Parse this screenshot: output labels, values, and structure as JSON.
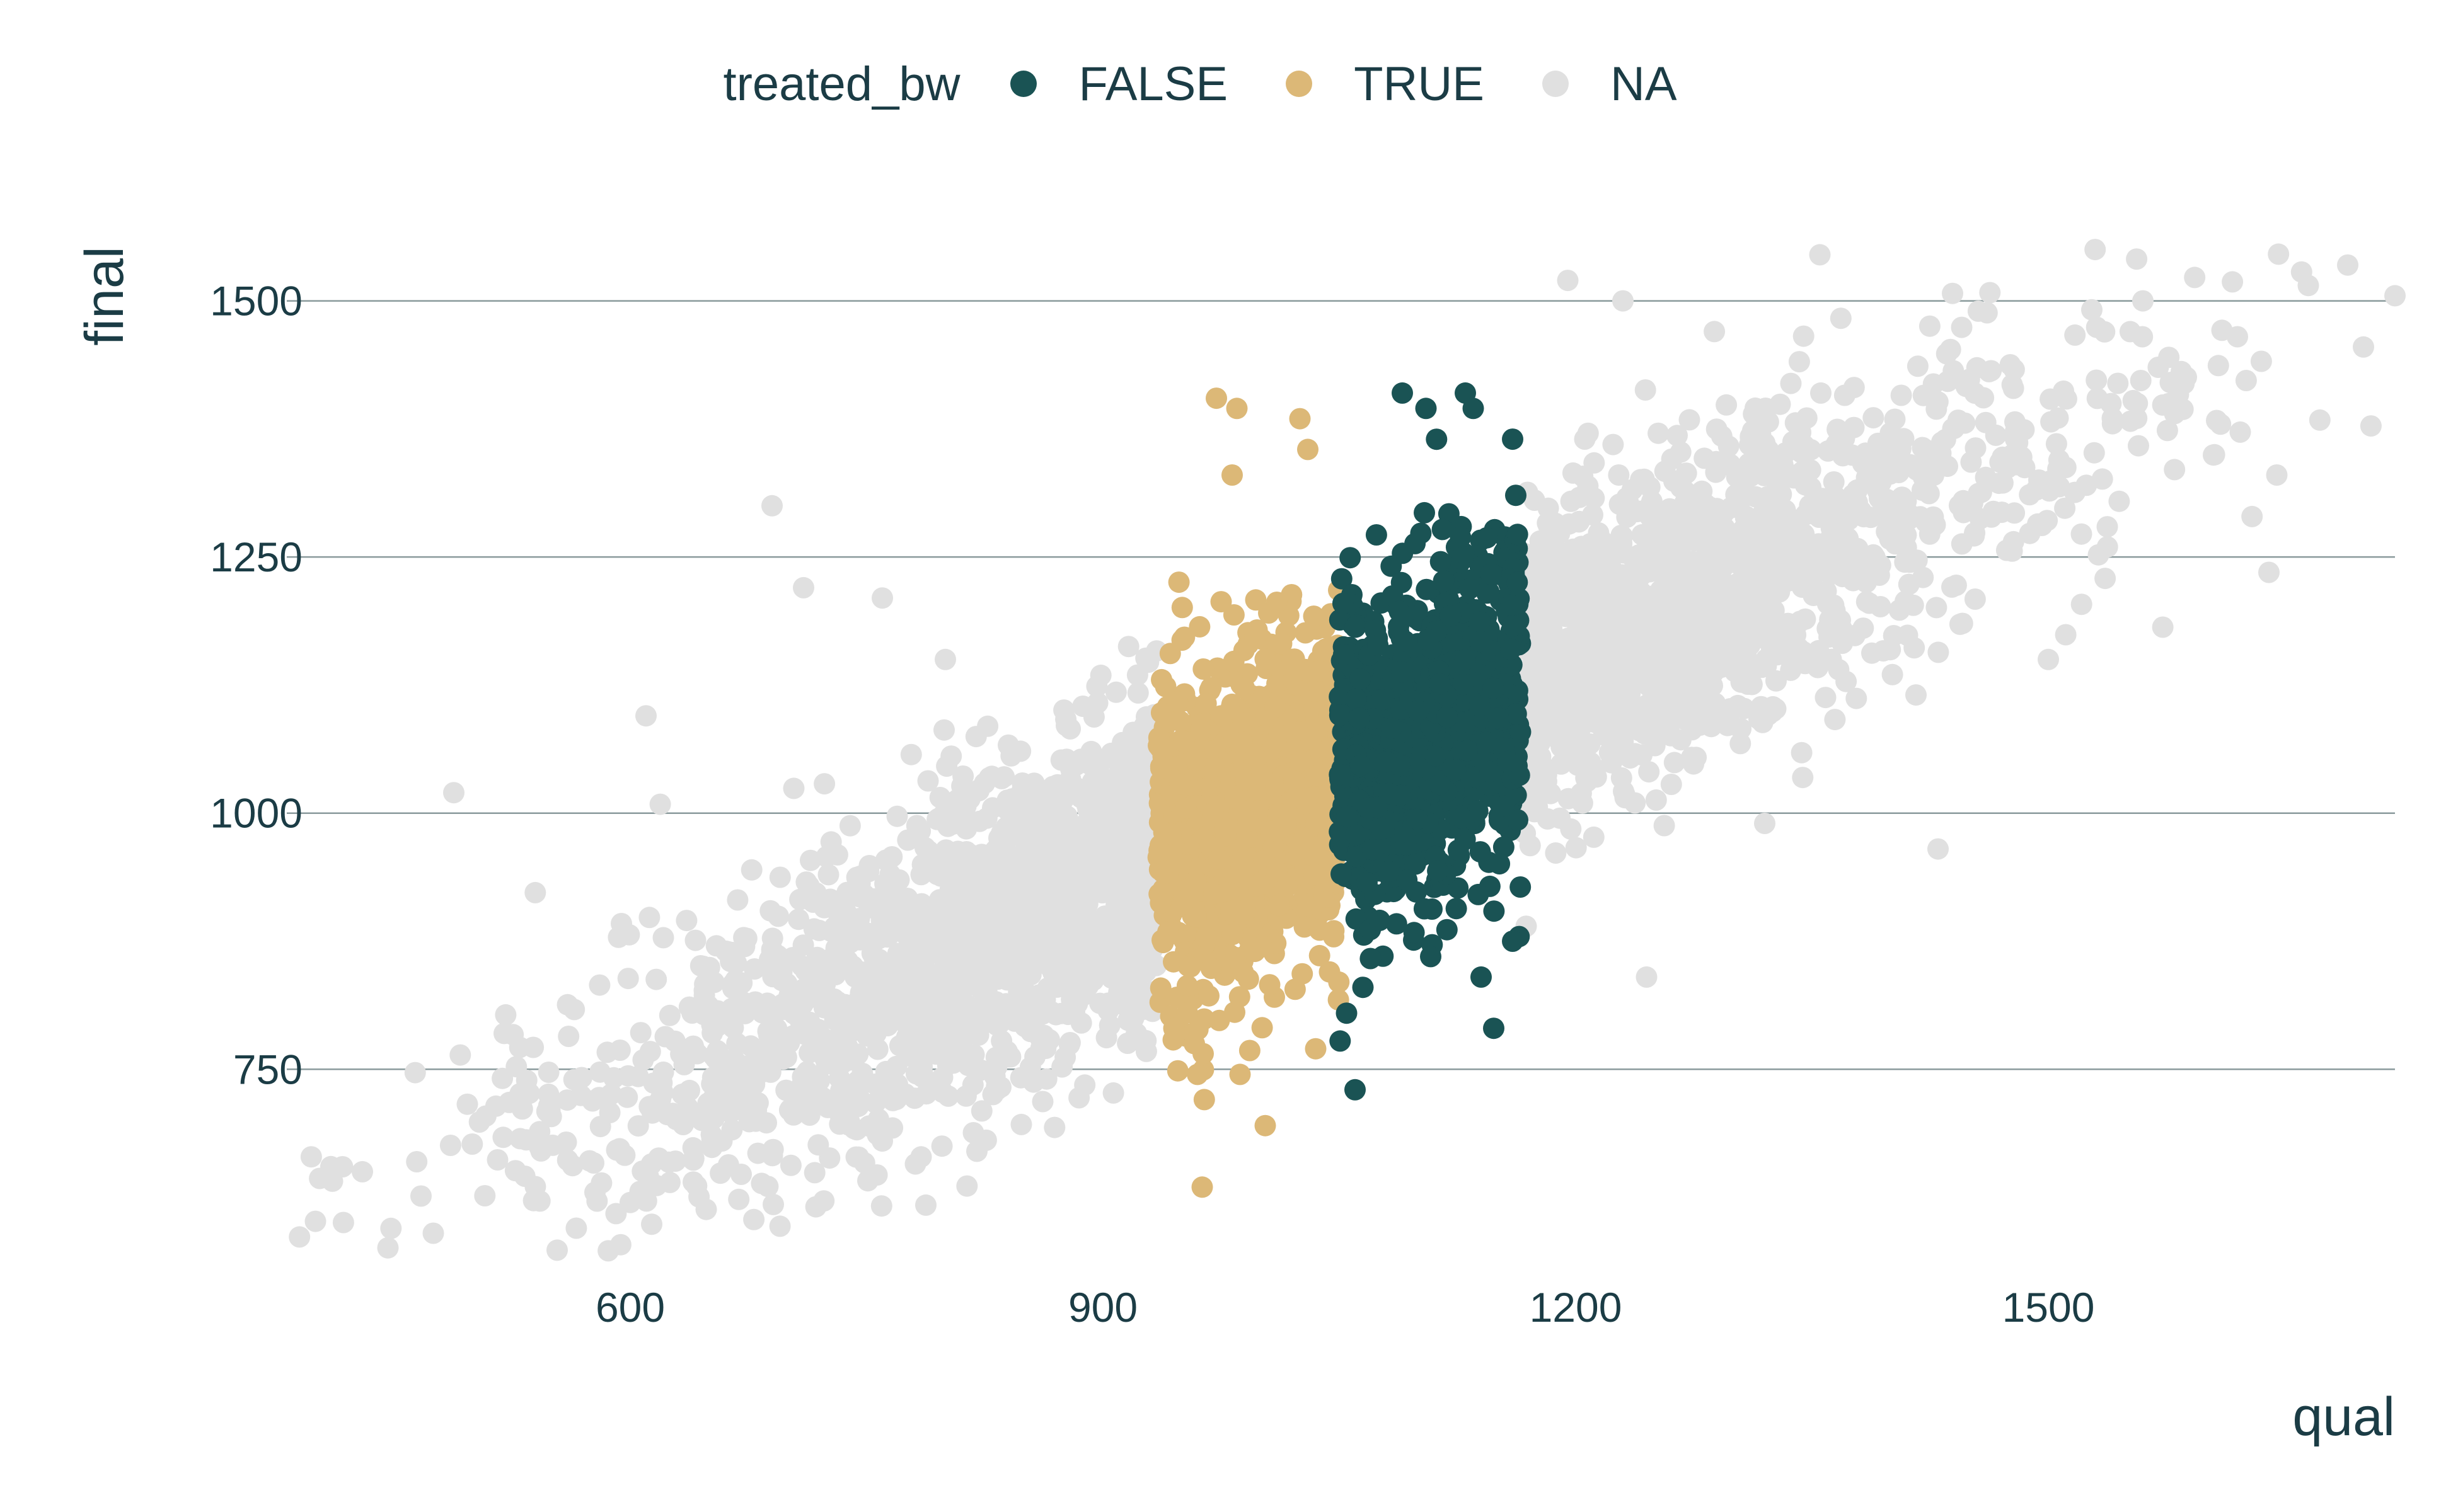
{
  "chart_data": {
    "type": "scatter",
    "title": "",
    "xlabel": "qual",
    "ylabel": "final",
    "xlim": [
      380,
      1720
    ],
    "ylim": [
      570,
      1560
    ],
    "x_ticks": [
      600,
      900,
      1200,
      1500
    ],
    "y_ticks": [
      750,
      1000,
      1250,
      1500
    ],
    "x_tick_labels": [
      "600",
      "900",
      "1200",
      "1500"
    ],
    "y_tick_labels": [
      "750",
      "1000",
      "1250",
      "1500"
    ],
    "grid": "horizontal-major",
    "legend": {
      "title": "treated_bw",
      "placement": "top",
      "entries": [
        {
          "label": "FALSE",
          "color": "#1a5354"
        },
        {
          "label": "TRUE",
          "color": "#dcb877"
        },
        {
          "label": "NA",
          "color": "#e0e0e0"
        }
      ]
    },
    "series": [
      {
        "name": "NA",
        "color": "#e0e0e0",
        "description_of_distribution": "qual < 935 or qual > 1165; final ≈ 0.75·qual + 250 with sd ≈ 75",
        "sample_points": [
          [
            410,
            655
          ],
          [
            430,
            650
          ],
          [
            475,
            590
          ],
          [
            488,
            1020
          ],
          [
            600,
            620
          ],
          [
            610,
            1095
          ],
          [
            690,
            1300
          ],
          [
            710,
            1220
          ],
          [
            760,
            1210
          ],
          [
            800,
            1150
          ],
          [
            1195,
            1520
          ],
          [
            1230,
            1500
          ],
          [
            1355,
            1545
          ],
          [
            1560,
            1500
          ],
          [
            1620,
            1465
          ],
          [
            1665,
            1515
          ],
          [
            1690,
            1535
          ],
          [
            1720,
            1505
          ],
          [
            1700,
            1455
          ],
          [
            1645,
            1330
          ],
          [
            1640,
            1235
          ],
          [
            1500,
            1150
          ],
          [
            1320,
            990
          ],
          [
            1245,
            840
          ],
          [
            1430,
            965
          ],
          [
            560,
            720
          ],
          [
            520,
            785
          ],
          [
            640,
            640
          ],
          [
            820,
            670
          ],
          [
            760,
            680
          ]
        ]
      },
      {
        "name": "TRUE",
        "color": "#dcb877",
        "description_of_distribution": "935 ≤ qual < 1050; final centered ~1030, range ~630–1410",
        "sample_points": [
          [
            972,
            1405
          ],
          [
            985,
            1395
          ],
          [
            1025,
            1385
          ],
          [
            1030,
            1355
          ],
          [
            982,
            1330
          ],
          [
            963,
            635
          ],
          [
            1003,
            695
          ],
          [
            960,
            745
          ],
          [
            987,
            745
          ],
          [
            1035,
            770
          ],
          [
            958,
            775
          ],
          [
            945,
            790
          ],
          [
            1010,
            1070
          ],
          [
            970,
            1000
          ],
          [
            1020,
            1150
          ]
        ]
      },
      {
        "name": "FALSE",
        "color": "#1a5354",
        "description_of_distribution": "1050 ≤ qual ≤ 1165; final centered ~1100, range ~730–1410",
        "sample_points": [
          [
            1090,
            1410
          ],
          [
            1130,
            1410
          ],
          [
            1105,
            1395
          ],
          [
            1135,
            1395
          ],
          [
            1160,
            1365
          ],
          [
            1148,
            790
          ],
          [
            1060,
            730
          ],
          [
            1065,
            830
          ],
          [
            1140,
            840
          ],
          [
            1108,
            860
          ],
          [
            1160,
            875
          ],
          [
            1100,
            1100
          ],
          [
            1130,
            1150
          ],
          [
            1080,
            1050
          ]
        ]
      }
    ]
  }
}
